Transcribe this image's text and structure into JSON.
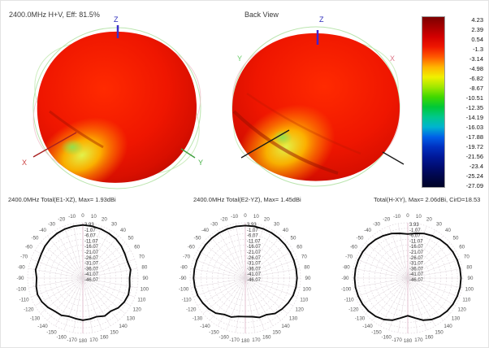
{
  "view3d": {
    "left_title": "2400.0MHz H+V, Eff: 81.5%",
    "right_title": "Back View",
    "axis_labels": {
      "x": "X",
      "y": "Y",
      "z": "Z"
    },
    "axis_colors": {
      "x": "#cc4444",
      "y": "#44b044",
      "z": "#2b2bbb"
    }
  },
  "colorbar": {
    "labels": [
      "4.23",
      "2.39",
      "0.54",
      "-1.3",
      "-3.14",
      "-4.98",
      "-6.82",
      "-8.67",
      "-10.51",
      "-12.35",
      "-14.19",
      "-16.03",
      "-17.88",
      "-19.72",
      "-21.56",
      "-23.4",
      "-25.24",
      "-27.09"
    ],
    "gradient": [
      "#7c0000",
      "#a80000",
      "#d40000",
      "#f01800",
      "#ff5a00",
      "#ffb400",
      "#f0f000",
      "#a0e800",
      "#40d800",
      "#00c838",
      "#00c88c",
      "#00b4d0",
      "#0060e8",
      "#0030c0",
      "#001898",
      "#000c70",
      "#000648",
      "#000326"
    ]
  },
  "chart_data": [
    {
      "type": "polar",
      "title": "2400.0MHz Total(E1-XZ), Max= 1.93dBi",
      "max_dbi": 1.93,
      "r_ticks": [
        3.93,
        -1.07,
        -6.07,
        -11.07,
        -16.07,
        -21.07,
        -26.07,
        -31.07,
        -36.07,
        -41.07,
        -46.07
      ],
      "r_range": [
        -46.07,
        3.93
      ],
      "angle_labels_deg": {
        "min": -170,
        "max": 180,
        "step": 10
      },
      "angles_deg": [
        -170,
        -160,
        -150,
        -140,
        -130,
        -120,
        -110,
        -100,
        -90,
        -80,
        -70,
        -60,
        -50,
        -40,
        -30,
        -20,
        -10,
        0,
        10,
        20,
        30,
        40,
        50,
        60,
        70,
        80,
        90,
        100,
        110,
        120,
        130,
        140,
        150,
        160,
        170,
        180
      ],
      "values_db": [
        -8.8,
        -9.2,
        -7.2,
        -6.8,
        -4.8,
        -3.2,
        -2.4,
        -3.2,
        -4.2,
        -2.6,
        -3.2,
        -2.6,
        -1.2,
        -0.2,
        0.6,
        1.2,
        1.6,
        1.93,
        1.6,
        1.2,
        0.7,
        0.3,
        -0.8,
        -2.2,
        -3.0,
        -2.2,
        -3.8,
        -3.0,
        -2.2,
        -2.8,
        -4.2,
        -7.0,
        -6.5,
        -9.0,
        -8.5,
        -8.0
      ]
    },
    {
      "type": "polar",
      "title": "2400.0MHz Total(E2-YZ), Max= 1.45dBi",
      "max_dbi": 1.45,
      "r_ticks": [
        3.93,
        -1.07,
        -6.07,
        -11.07,
        -16.07,
        -21.07,
        -26.07,
        -31.07,
        -36.07,
        -41.07,
        -46.07
      ],
      "r_range": [
        -46.07,
        3.93
      ],
      "angle_labels_deg": {
        "min": -170,
        "max": 180,
        "step": 10
      },
      "angles_deg": [
        -170,
        -160,
        -150,
        -140,
        -130,
        -120,
        -110,
        -100,
        -90,
        -80,
        -70,
        -60,
        -50,
        -40,
        -30,
        -20,
        -10,
        0,
        10,
        20,
        30,
        40,
        50,
        60,
        70,
        80,
        90,
        100,
        110,
        120,
        130,
        140,
        150,
        160,
        170,
        180
      ],
      "values_db": [
        -10.8,
        -8.6,
        -8.0,
        -4.6,
        -2.8,
        -1.4,
        -0.1,
        0.4,
        0.8,
        0.75,
        0.7,
        0.75,
        0.85,
        1.05,
        1.2,
        1.3,
        1.4,
        1.45,
        1.4,
        1.35,
        1.25,
        1.1,
        0.9,
        0.8,
        0.7,
        0.7,
        0.8,
        0.5,
        0.0,
        -1.2,
        -2.6,
        -4.2,
        -7.8,
        -8.2,
        -10.6,
        -11.2
      ]
    },
    {
      "type": "polar",
      "title": "Total(H-XY), Max= 2.06dBi, CirD=18.53",
      "max_dbi": 2.06,
      "cir_d": 18.53,
      "r_ticks": [
        3.93,
        -1.07,
        -6.07,
        -11.07,
        -16.07,
        -21.07,
        -26.07,
        -31.07,
        -36.07,
        -41.07,
        -46.07
      ],
      "r_range": [
        -46.07,
        3.93
      ],
      "angle_labels_deg": {
        "min": -170,
        "max": 180,
        "step": 10
      },
      "angles_deg": [
        -170,
        -160,
        -150,
        -140,
        -130,
        -120,
        -110,
        -100,
        -90,
        -80,
        -70,
        -60,
        -50,
        -40,
        -30,
        -20,
        -10,
        0,
        10,
        20,
        30,
        40,
        50,
        60,
        70,
        80,
        90,
        100,
        110,
        120,
        130,
        140,
        150,
        160,
        170,
        180
      ],
      "values_db": [
        -9.5,
        -5.5,
        -2.8,
        -0.9,
        0.4,
        1.2,
        1.7,
        2.0,
        2.06,
        1.95,
        1.6,
        1.1,
        0.4,
        -0.6,
        -1.8,
        -3.2,
        -5.0,
        -6.2,
        -5.0,
        -3.2,
        -1.8,
        -0.6,
        0.4,
        1.1,
        1.6,
        1.95,
        2.06,
        2.0,
        1.7,
        1.2,
        0.4,
        -0.9,
        -2.8,
        -5.5,
        -9.5,
        -12.0
      ]
    }
  ]
}
